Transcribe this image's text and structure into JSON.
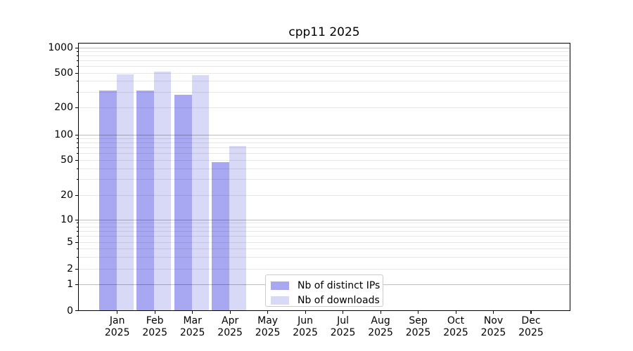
{
  "chart_data": {
    "type": "bar",
    "title": "cpp11 2025",
    "x_year": "2025",
    "categories": [
      "Jan",
      "Feb",
      "Mar",
      "Apr",
      "May",
      "Jun",
      "Jul",
      "Aug",
      "Sep",
      "Oct",
      "Nov",
      "Dec"
    ],
    "series": [
      {
        "name": "Nb of distinct IPs",
        "color": "#a8a8f2",
        "values": [
          315,
          315,
          280,
          47,
          null,
          null,
          null,
          null,
          null,
          null,
          null,
          null
        ]
      },
      {
        "name": "Nb of downloads",
        "color": "#d8d8f7",
        "values": [
          480,
          520,
          470,
          73,
          null,
          null,
          null,
          null,
          null,
          null,
          null,
          null
        ]
      }
    ],
    "yticks": [
      0,
      1,
      2,
      5,
      10,
      20,
      50,
      100,
      200,
      500,
      1000
    ],
    "yscale": "symlog",
    "ylim": [
      0,
      1200
    ],
    "grid": "both",
    "legend_position": "lower center",
    "colors": {
      "bar_ips": "#a8a8f2",
      "bar_downloads": "#d8d8f7",
      "grid_major": "rgba(0,0,0,0.26)",
      "grid_minor": "rgba(0,0,0,0.09)",
      "spine": "#000000"
    }
  }
}
